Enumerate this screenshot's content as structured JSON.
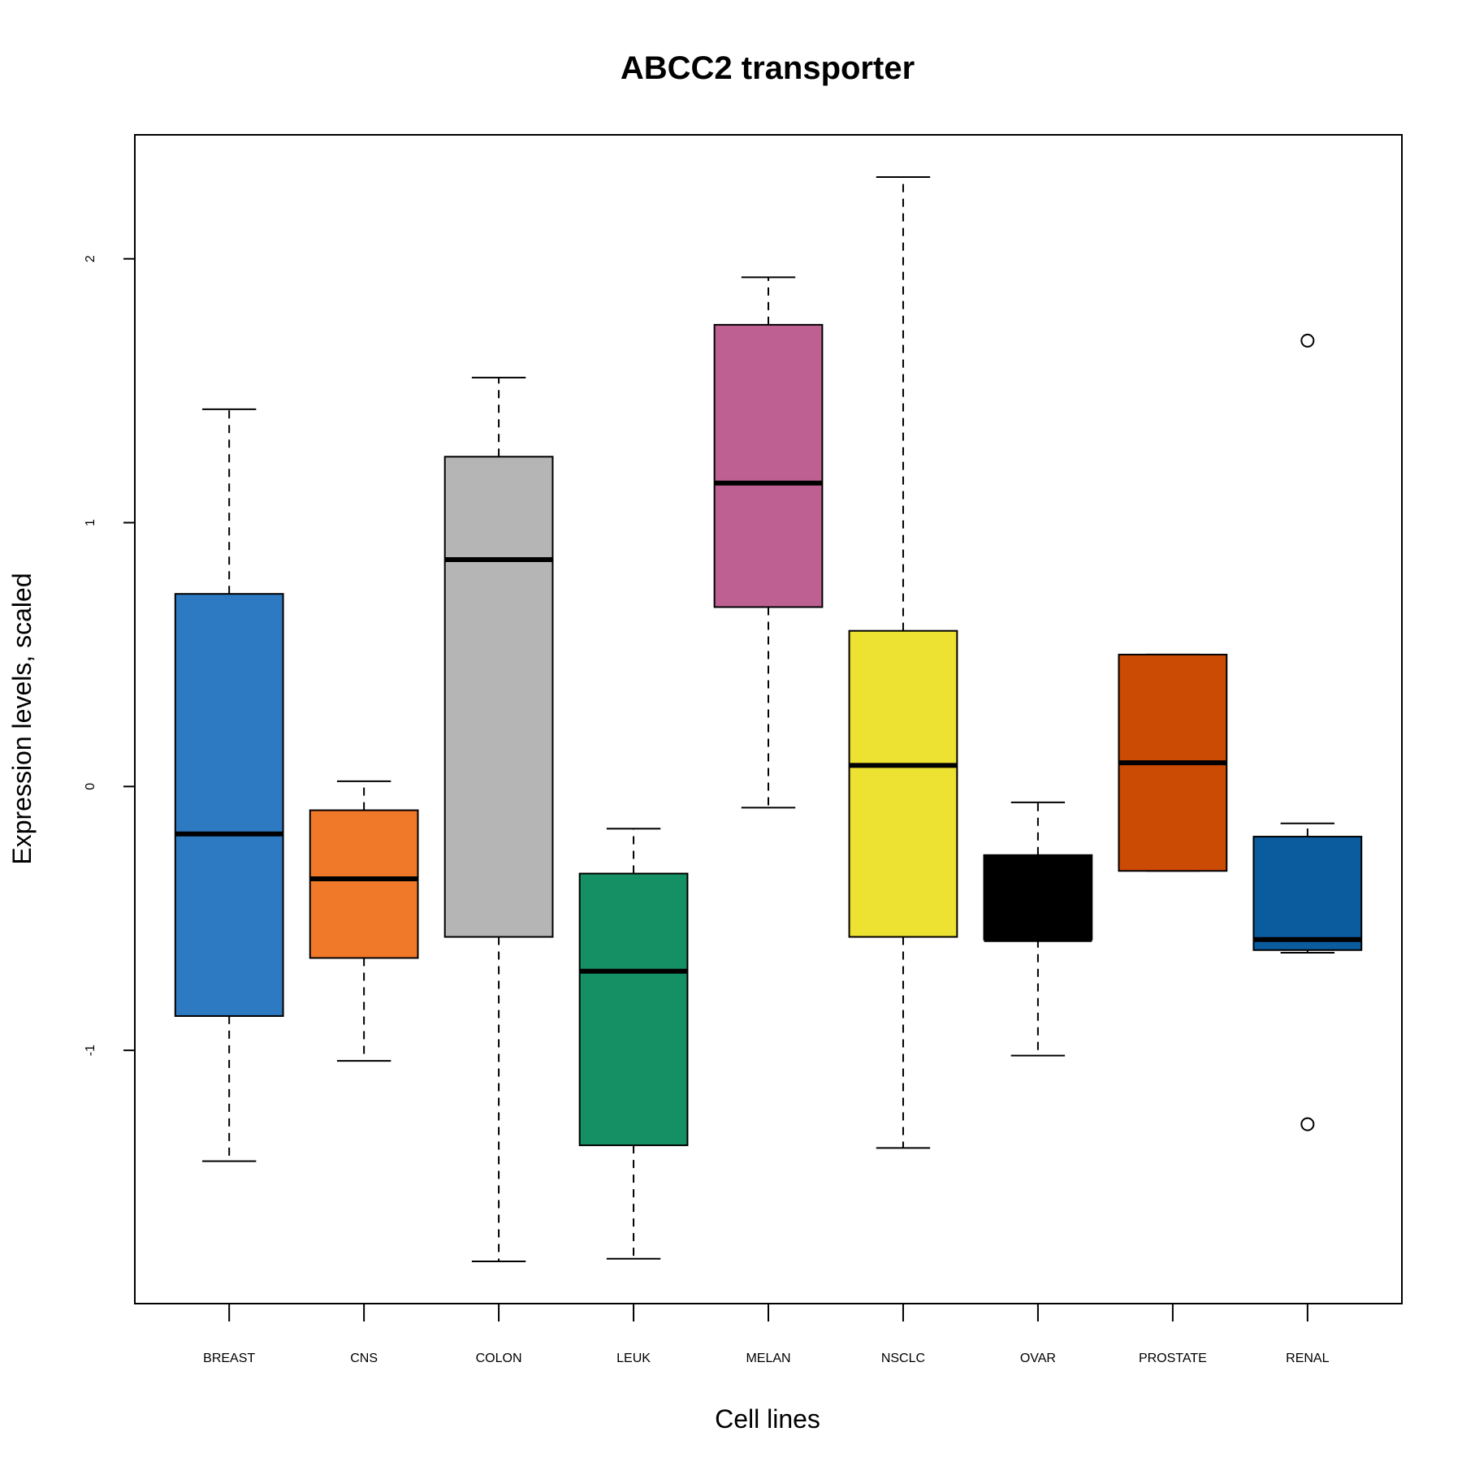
{
  "chart_data": {
    "type": "boxplot",
    "title": "ABCC2 transporter",
    "xlabel": "Cell lines",
    "ylabel": "Expression levels, scaled",
    "ylim": [
      -1.96,
      2.47
    ],
    "yticks": [
      -1,
      0,
      1,
      2
    ],
    "ytick_labels": [
      "-1",
      "0",
      "1",
      "2"
    ],
    "grid": false,
    "legend": "none",
    "categories": [
      "BREAST",
      "CNS",
      "COLON",
      "LEUK",
      "MELAN",
      "NSCLC",
      "OVAR",
      "PROSTATE",
      "RENAL"
    ],
    "boxes": [
      {
        "category": "BREAST",
        "color": "#2E7AC2",
        "whisker_low": -1.42,
        "q1": -0.87,
        "median": -0.18,
        "q3": 0.73,
        "whisker_high": 1.43,
        "outliers": []
      },
      {
        "category": "CNS",
        "color": "#F07829",
        "whisker_low": -1.04,
        "q1": -0.65,
        "median": -0.35,
        "q3": -0.09,
        "whisker_high": 0.02,
        "outliers": []
      },
      {
        "category": "COLON",
        "color": "#B5B5B5",
        "whisker_low": -1.8,
        "q1": -0.57,
        "median": 0.86,
        "q3": 1.25,
        "whisker_high": 1.55,
        "outliers": []
      },
      {
        "category": "LEUK",
        "color": "#159064",
        "whisker_low": -1.79,
        "q1": -1.36,
        "median": -0.7,
        "q3": -0.33,
        "whisker_high": -0.16,
        "outliers": []
      },
      {
        "category": "MELAN",
        "color": "#BF6092",
        "whisker_low": -0.08,
        "q1": 0.68,
        "median": 1.15,
        "q3": 1.75,
        "whisker_high": 1.93,
        "outliers": []
      },
      {
        "category": "NSCLC",
        "color": "#EDE132",
        "whisker_low": -1.37,
        "q1": -0.57,
        "median": 0.08,
        "q3": 0.59,
        "whisker_high": 2.31,
        "outliers": []
      },
      {
        "category": "OVAR",
        "color": "#000000",
        "whisker_low": -1.02,
        "q1": -0.58,
        "median": -0.58,
        "q3": -0.26,
        "whisker_high": -0.06,
        "outliers": []
      },
      {
        "category": "PROSTATE",
        "color": "#CB4A04",
        "whisker_low": -0.32,
        "q1": -0.32,
        "median": 0.09,
        "q3": 0.5,
        "whisker_high": 0.5,
        "outliers": []
      },
      {
        "category": "RENAL",
        "color": "#0B5C9F",
        "whisker_low": -0.63,
        "q1": -0.62,
        "median": -0.58,
        "q3": -0.19,
        "whisker_high": -0.14,
        "outliers": [
          1.69,
          -1.28
        ]
      }
    ]
  }
}
